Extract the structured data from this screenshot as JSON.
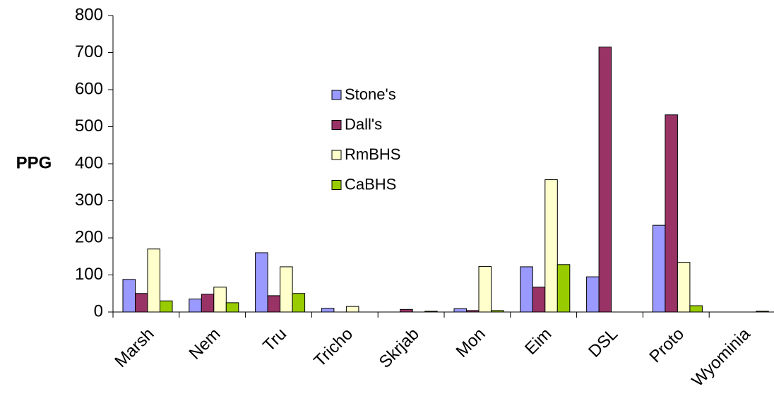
{
  "chart_data": {
    "type": "bar",
    "y_label": "PPG",
    "categories": [
      "Marsh",
      "Nem",
      "Tru",
      "Tricho",
      "Skrjab",
      "Mon",
      "Eim",
      "DSL",
      "Proto",
      "Wyominia"
    ],
    "series": [
      {
        "name": "Stone's",
        "color": "#9999ff",
        "values": [
          88,
          35,
          160,
          10,
          0,
          9,
          122,
          95,
          234,
          0
        ]
      },
      {
        "name": "Dall's",
        "color": "#993366",
        "values": [
          50,
          48,
          44,
          0,
          7,
          4,
          67,
          715,
          532,
          0
        ]
      },
      {
        "name": "RmBHS",
        "color": "#ffffcc",
        "values": [
          170,
          67,
          122,
          15,
          0,
          123,
          357,
          0,
          134,
          0
        ]
      },
      {
        "name": "CaBHS",
        "color": "#99cc00",
        "values": [
          30,
          25,
          50,
          0,
          2,
          4,
          128,
          0,
          17,
          2
        ]
      }
    ],
    "ylim": [
      0,
      800
    ],
    "yticks": [
      0,
      100,
      200,
      300,
      400,
      500,
      600,
      700,
      800
    ],
    "grid": false
  }
}
